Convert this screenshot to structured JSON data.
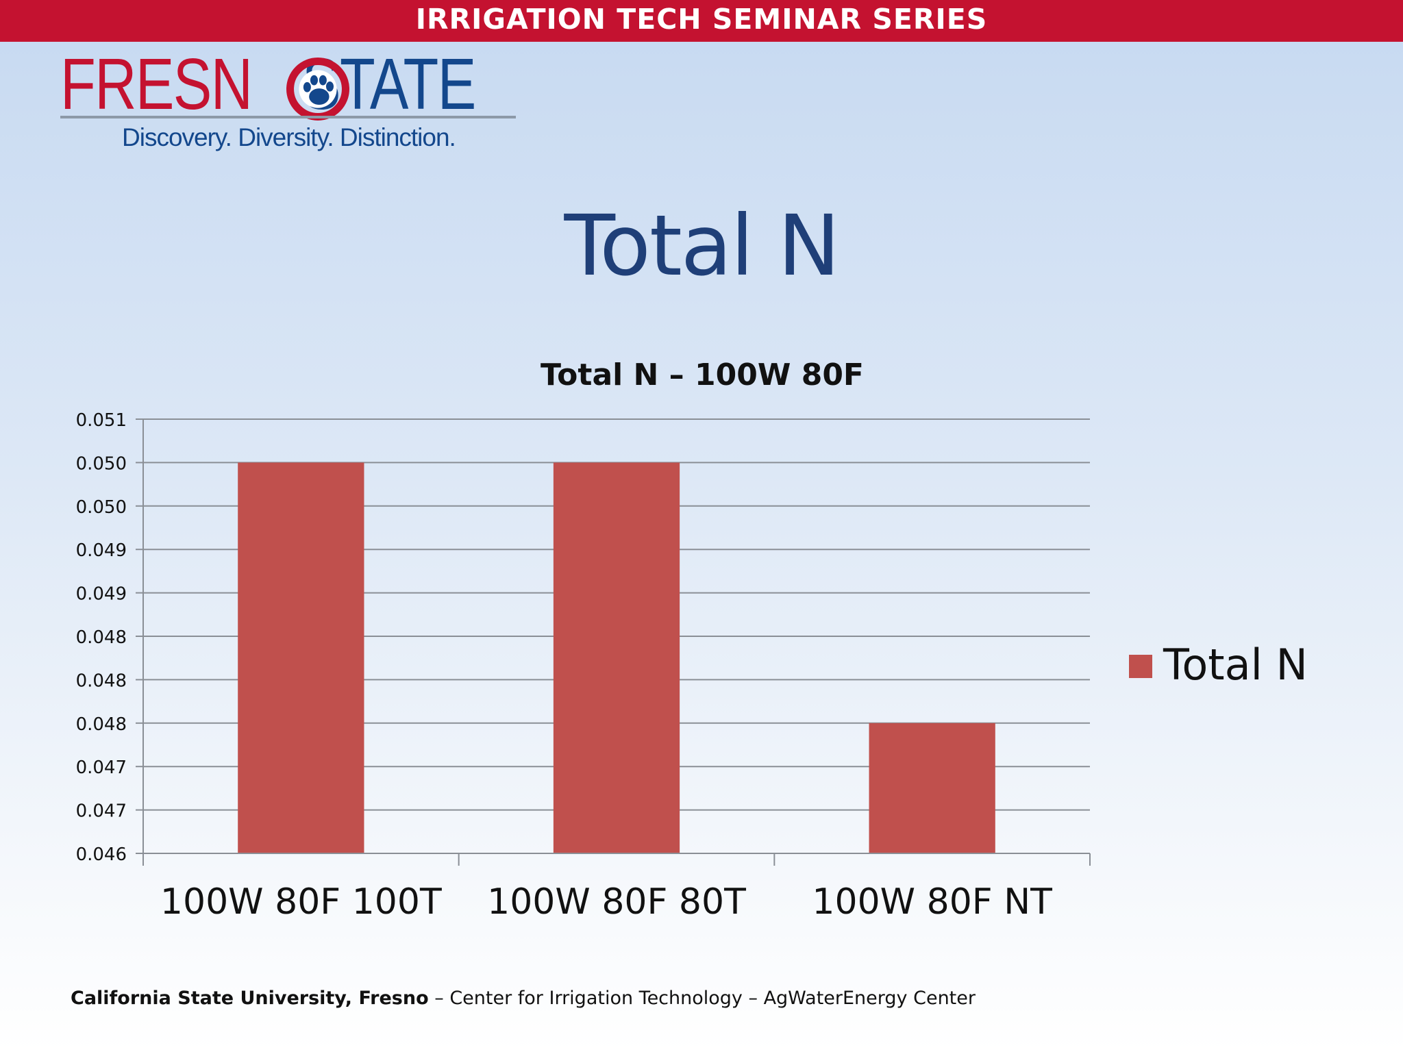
{
  "header": {
    "series_title": "IRRIGATION TECH SEMINAR SERIES"
  },
  "logo": {
    "word_left": "FRESN",
    "word_right": "STATE",
    "tagline": "Discovery. Diversity. Distinction.",
    "colors": {
      "red": "#c41230",
      "blue": "#13478c"
    },
    "icon": "paw-icon"
  },
  "slide": {
    "title": "Total N"
  },
  "chart_data": {
    "type": "bar",
    "title": "Total N – 100W 80F",
    "categories": [
      "100W 80F 100T",
      "100W 80F 80T",
      "100W 80F NT"
    ],
    "series": [
      {
        "name": "Total N",
        "values": [
          0.0505,
          0.0505,
          0.0475
        ],
        "color": "#c0504d"
      }
    ],
    "xlabel": "",
    "ylabel": "",
    "ylim": [
      0.046,
      0.051
    ],
    "y_ticks": [
      0.046,
      0.0465,
      0.047,
      0.0475,
      0.048,
      0.0485,
      0.049,
      0.0495,
      0.05,
      0.0505,
      0.051
    ],
    "y_tick_labels": [
      "0.046",
      "0.047",
      "0.047",
      "0.048",
      "0.048",
      "0.048",
      "0.049",
      "0.049",
      "0.050",
      "0.050",
      "0.051"
    ],
    "grid": true,
    "legend": "right"
  },
  "footer": {
    "institution": "California State University, Fresno",
    "rest": " – Center for Irrigation Technology – AgWaterEnergy Center"
  }
}
